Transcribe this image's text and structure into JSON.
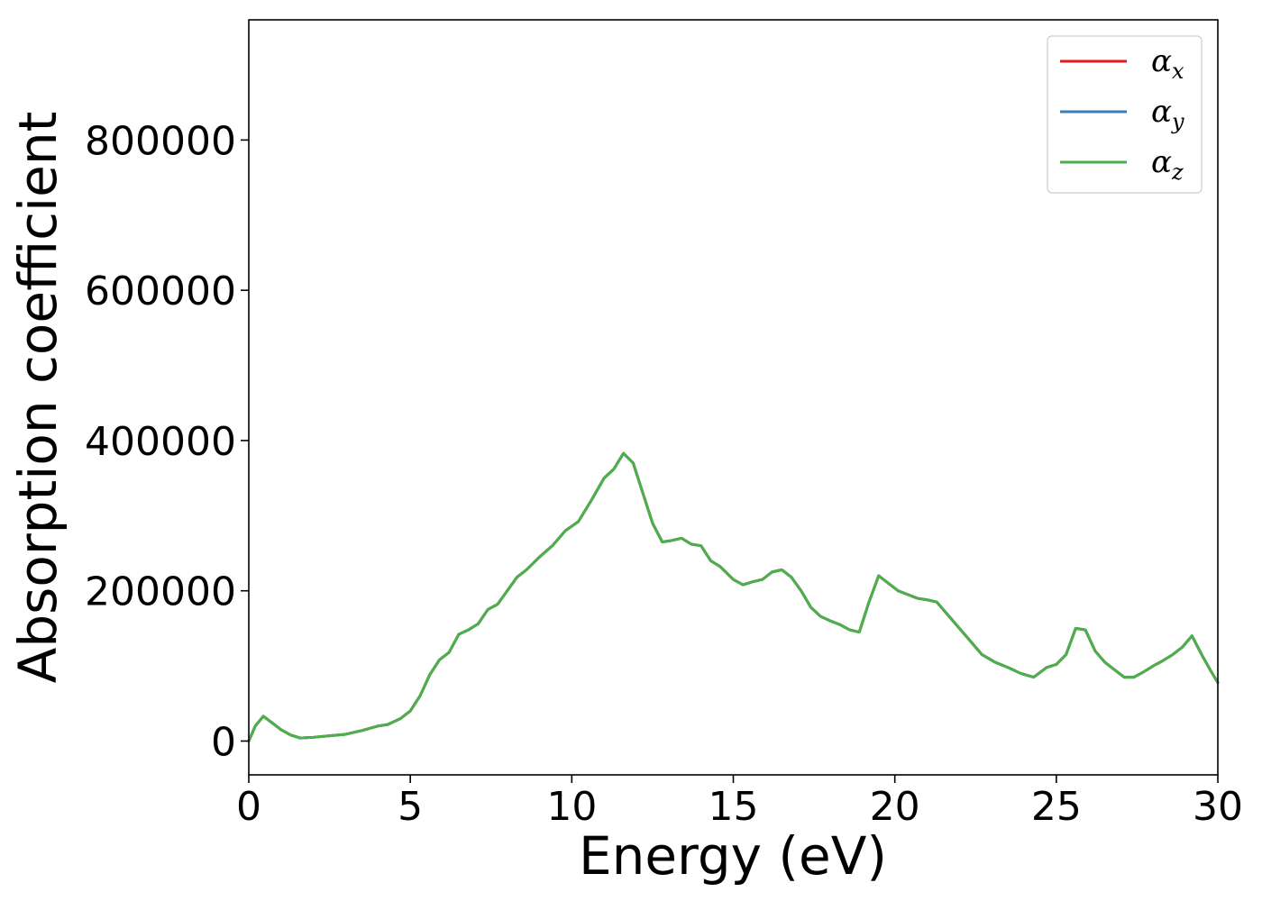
{
  "chart_data": {
    "type": "line",
    "title": "",
    "xlabel": "Energy (eV)",
    "ylabel": "Absorption coefficient",
    "xlim": [
      0,
      30
    ],
    "ylim": [
      -45000,
      960000
    ],
    "xticks": [
      0,
      5,
      10,
      15,
      20,
      25,
      30
    ],
    "yticks": [
      0,
      200000,
      400000,
      600000,
      800000
    ],
    "xtick_labels": [
      "0",
      "5",
      "10",
      "15",
      "20",
      "25",
      "30"
    ],
    "ytick_labels": [
      "0",
      "200000",
      "400000",
      "600000",
      "800000"
    ],
    "grid": false,
    "legend_position": "top-right",
    "x": [
      0,
      0.2,
      0.45,
      0.7,
      1.0,
      1.3,
      1.6,
      2.0,
      2.5,
      3.0,
      3.5,
      4.0,
      4.3,
      4.7,
      5.0,
      5.3,
      5.6,
      5.9,
      6.2,
      6.5,
      6.8,
      7.1,
      7.4,
      7.7,
      8.0,
      8.3,
      8.6,
      9.0,
      9.4,
      9.8,
      10.2,
      10.6,
      11.0,
      11.3,
      11.6,
      11.9,
      12.2,
      12.5,
      12.8,
      13.1,
      13.4,
      13.7,
      14.0,
      14.3,
      14.6,
      15.0,
      15.3,
      15.6,
      15.9,
      16.2,
      16.5,
      16.8,
      17.1,
      17.4,
      17.7,
      18.0,
      18.3,
      18.6,
      18.9,
      19.2,
      19.5,
      19.8,
      20.1,
      20.4,
      20.7,
      21.0,
      21.3,
      21.6,
      21.9,
      22.3,
      22.7,
      23.1,
      23.5,
      23.9,
      24.3,
      24.7,
      25.0,
      25.3,
      25.6,
      25.9,
      26.2,
      26.5,
      26.8,
      27.1,
      27.4,
      27.7,
      28.0,
      28.3,
      28.6,
      28.9,
      29.2,
      29.5,
      29.8,
      30.0
    ],
    "series": [
      {
        "name": "αx",
        "label_base": "α",
        "label_sub": "x",
        "color": "#e41a1c",
        "values": [
          0,
          20000,
          33000,
          25000,
          15000,
          8000,
          4000,
          5000,
          7000,
          9000,
          14000,
          20000,
          22000,
          30000,
          40000,
          60000,
          88000,
          108000,
          118000,
          142000,
          148000,
          156000,
          175000,
          182000,
          200000,
          218000,
          228000,
          245000,
          260000,
          280000,
          292000,
          320000,
          350000,
          362000,
          383000,
          370000,
          330000,
          290000,
          265000,
          267000,
          270000,
          262000,
          260000,
          240000,
          232000,
          215000,
          208000,
          212000,
          215000,
          225000,
          228000,
          218000,
          200000,
          178000,
          166000,
          160000,
          155000,
          148000,
          145000,
          185000,
          220000,
          210000,
          200000,
          195000,
          190000,
          188000,
          185000,
          170000,
          155000,
          135000,
          115000,
          105000,
          98000,
          90000,
          85000,
          98000,
          102000,
          115000,
          150000,
          148000,
          120000,
          105000,
          95000,
          85000,
          85000,
          92000,
          100000,
          107000,
          115000,
          125000,
          140000,
          115000,
          92000,
          78000
        ]
      },
      {
        "name": "αy",
        "label_base": "α",
        "label_sub": "y",
        "color": "#377eb8",
        "values": [
          0,
          20000,
          33000,
          25000,
          15000,
          8000,
          4000,
          5000,
          7000,
          9000,
          14000,
          20000,
          22000,
          30000,
          40000,
          60000,
          88000,
          108000,
          118000,
          142000,
          148000,
          156000,
          175000,
          182000,
          200000,
          218000,
          228000,
          245000,
          260000,
          280000,
          292000,
          320000,
          350000,
          362000,
          383000,
          370000,
          330000,
          290000,
          265000,
          267000,
          270000,
          262000,
          260000,
          240000,
          232000,
          215000,
          208000,
          212000,
          215000,
          225000,
          228000,
          218000,
          200000,
          178000,
          166000,
          160000,
          155000,
          148000,
          145000,
          185000,
          220000,
          210000,
          200000,
          195000,
          190000,
          188000,
          185000,
          170000,
          155000,
          135000,
          115000,
          105000,
          98000,
          90000,
          85000,
          98000,
          102000,
          115000,
          150000,
          148000,
          120000,
          105000,
          95000,
          85000,
          85000,
          92000,
          100000,
          107000,
          115000,
          125000,
          140000,
          115000,
          92000,
          78000
        ]
      },
      {
        "name": "αz",
        "label_base": "α",
        "label_sub": "z",
        "color": "#4daf4a",
        "values": [
          0,
          20000,
          33000,
          25000,
          15000,
          8000,
          4000,
          5000,
          7000,
          9000,
          14000,
          20000,
          22000,
          30000,
          40000,
          60000,
          88000,
          108000,
          118000,
          142000,
          148000,
          156000,
          175000,
          182000,
          200000,
          218000,
          228000,
          245000,
          260000,
          280000,
          292000,
          320000,
          350000,
          362000,
          383000,
          370000,
          330000,
          290000,
          265000,
          267000,
          270000,
          262000,
          260000,
          240000,
          232000,
          215000,
          208000,
          212000,
          215000,
          225000,
          228000,
          218000,
          200000,
          178000,
          166000,
          160000,
          155000,
          148000,
          145000,
          185000,
          220000,
          210000,
          200000,
          195000,
          190000,
          188000,
          185000,
          170000,
          155000,
          135000,
          115000,
          105000,
          98000,
          90000,
          85000,
          98000,
          102000,
          115000,
          150000,
          148000,
          120000,
          105000,
          95000,
          85000,
          85000,
          92000,
          100000,
          107000,
          115000,
          125000,
          140000,
          115000,
          92000,
          78000
        ]
      }
    ]
  }
}
